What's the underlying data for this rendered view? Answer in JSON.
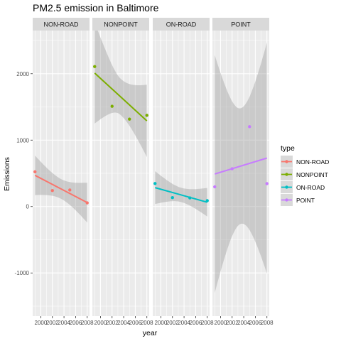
{
  "chart_data": {
    "type": "scatter",
    "title": "PM2.5 emission in Baltimore",
    "xlabel": "year",
    "ylabel": "Emissions",
    "ylim": [
      -1650,
      2650
    ],
    "xlim": [
      1998.6,
      2008.4
    ],
    "y_ticks": [
      -1000,
      0,
      1000,
      2000
    ],
    "x_ticks": [
      2000,
      2002,
      2004,
      2006,
      2008
    ],
    "x_tick_labels": [
      "2000",
      "2002",
      "2004",
      "2006",
      "2008"
    ],
    "y_tick_labels": [
      "-1000",
      "0",
      "1000",
      "2000"
    ],
    "grid": true,
    "legend": {
      "title": "type",
      "position": "right"
    },
    "panels": [
      {
        "name": "NON-ROAD",
        "color": "#F8766D",
        "points": [
          {
            "x": 1999,
            "y": 522.94
          },
          {
            "x": 2002,
            "y": 240.85
          },
          {
            "x": 2005,
            "y": 248.93
          },
          {
            "x": 2008,
            "y": 55.82
          }
        ],
        "fit": {
          "x": [
            1999,
            2008
          ],
          "y": [
            470,
            60
          ]
        },
        "band": {
          "upper_y": [
            770,
            360
          ],
          "lower_y": [
            175,
            -240
          ]
        }
      },
      {
        "name": "NONPOINT",
        "color": "#7CAE00",
        "points": [
          {
            "x": 1999,
            "y": 2107.63
          },
          {
            "x": 2002,
            "y": 1509.5
          },
          {
            "x": 2005,
            "y": 1316.5
          },
          {
            "x": 2008,
            "y": 1373.21
          }
        ],
        "fit": {
          "x": [
            1999,
            2008
          ],
          "y": [
            2010,
            1290
          ]
        },
        "band": {
          "upper_y": [
            2780,
            1590
          ],
          "lower_y": [
            1260,
            500
          ]
        }
      },
      {
        "name": "ON-ROAD",
        "color": "#00BFC4",
        "points": [
          {
            "x": 1999,
            "y": 346.82
          },
          {
            "x": 2002,
            "y": 134.31
          },
          {
            "x": 2005,
            "y": 130.43
          },
          {
            "x": 2008,
            "y": 88.28
          }
        ],
        "fit": {
          "x": [
            1999,
            2008
          ],
          "y": [
            285,
            65
          ]
        },
        "band": {
          "upper_y": [
            545,
            280
          ],
          "lower_y": [
            50,
            -150
          ]
        }
      },
      {
        "name": "POINT",
        "color": "#C77CFF",
        "points": [
          {
            "x": 1999,
            "y": 296.8
          },
          {
            "x": 2002,
            "y": 569.26
          },
          {
            "x": 2005,
            "y": 1202.49
          },
          {
            "x": 2008,
            "y": 344.98
          }
        ],
        "fit": {
          "x": [
            1999,
            2008
          ],
          "y": [
            490,
            730
          ]
        },
        "band": {
          "upper_y": [
            2280,
            2470
          ],
          "lower_y": [
            -1300,
            -1010
          ]
        }
      }
    ]
  }
}
